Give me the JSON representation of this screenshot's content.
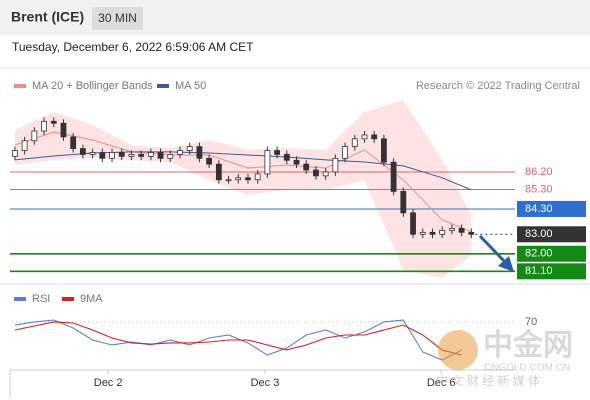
{
  "header": {
    "title": "Brent (ICE)",
    "interval": "30 MIN",
    "timestamp": "Tuesday, December 6, 2022 6:59:06 AM CET"
  },
  "watermark": {
    "name": "中金网",
    "site": "CNGOLD.COM.CN",
    "slogan": "中 文 财 经 新 媒 体"
  },
  "chart_data": [
    {
      "type": "candlestick",
      "source": "Research © 2022 Trading Central",
      "ylim": [
        80.5,
        90.15
      ],
      "xlim": [
        -0.3,
        51.5
      ],
      "candle_color": "#333333",
      "open": [
        87.0,
        87.3,
        87.8,
        88.3,
        88.8,
        88.7,
        88.0,
        87.4,
        87.1,
        87.2,
        86.9,
        87.2,
        87.0,
        87.1,
        87.0,
        87.2,
        86.9,
        87.1,
        87.3,
        87.5,
        86.9,
        86.6,
        85.8,
        85.8,
        85.9,
        85.8,
        86.1,
        87.3,
        87.1,
        86.8,
        86.6,
        86.3,
        86.0,
        86.2,
        86.9,
        87.5,
        87.9,
        88.1,
        87.9,
        86.7,
        85.2,
        84.1,
        83.0,
        83.1,
        83.0,
        83.2,
        83.3,
        83.1
      ],
      "high": [
        87.5,
        88.0,
        88.5,
        89.0,
        89.0,
        88.9,
        88.2,
        87.6,
        87.4,
        87.4,
        87.4,
        87.4,
        87.3,
        87.3,
        87.4,
        87.4,
        87.3,
        87.5,
        87.7,
        87.7,
        87.1,
        86.8,
        86.0,
        86.1,
        86.1,
        86.3,
        87.5,
        87.5,
        87.3,
        87.0,
        86.8,
        86.5,
        86.4,
        87.1,
        87.7,
        88.1,
        88.3,
        88.3,
        88.1,
        86.9,
        85.4,
        84.3,
        83.3,
        83.3,
        83.4,
        83.5,
        83.5,
        83.3
      ],
      "low": [
        86.8,
        87.1,
        87.6,
        88.1,
        88.5,
        87.8,
        87.2,
        86.9,
        86.9,
        86.7,
        86.7,
        86.8,
        86.8,
        86.8,
        86.8,
        86.7,
        86.7,
        86.9,
        87.1,
        86.7,
        86.4,
        85.6,
        85.6,
        85.6,
        85.6,
        85.6,
        85.9,
        86.9,
        86.6,
        86.4,
        86.1,
        85.8,
        85.8,
        86.0,
        86.7,
        87.3,
        87.7,
        87.7,
        86.5,
        85.0,
        83.9,
        82.8,
        82.8,
        82.8,
        82.8,
        83.0,
        82.9,
        82.8
      ],
      "close": [
        87.3,
        87.8,
        88.3,
        88.8,
        88.7,
        88.0,
        87.4,
        87.1,
        87.2,
        86.9,
        87.2,
        87.0,
        87.1,
        87.0,
        87.2,
        86.9,
        87.1,
        87.3,
        87.5,
        86.9,
        86.6,
        85.8,
        85.8,
        85.9,
        85.8,
        86.1,
        87.3,
        87.1,
        86.8,
        86.6,
        86.3,
        86.0,
        86.2,
        86.9,
        87.5,
        87.9,
        88.1,
        87.9,
        86.7,
        85.2,
        84.1,
        83.0,
        83.1,
        83.0,
        83.2,
        83.3,
        83.1,
        83.0
      ],
      "series": [
        {
          "name": "MA 20 + Bollinger Bands",
          "color": "#f08a8a",
          "band_color": "#fde3e3",
          "x": [
            0,
            4,
            8,
            12,
            16,
            20,
            24,
            28,
            32,
            36,
            40,
            44,
            47
          ],
          "values": [
            87.58,
            88.25,
            87.84,
            87.23,
            87.07,
            87.07,
            86.4,
            86.56,
            86.4,
            87.33,
            85.79,
            83.74,
            83.12
          ],
          "upper": [
            88.35,
            89.28,
            88.61,
            87.58,
            87.43,
            87.84,
            87.33,
            87.43,
            87.33,
            89.28,
            89.89,
            86.82,
            84.0
          ],
          "lower": [
            86.56,
            86.82,
            86.92,
            86.82,
            86.71,
            85.79,
            85.02,
            85.28,
            85.28,
            85.79,
            81.17,
            80.76,
            81.94
          ]
        },
        {
          "name": "MA 50",
          "color": "#3d5a99",
          "x": [
            0,
            4,
            8,
            12,
            16,
            20,
            24,
            28,
            32,
            36,
            40,
            44,
            47
          ],
          "values": [
            86.82,
            87.02,
            87.17,
            87.23,
            87.23,
            87.17,
            87.07,
            86.97,
            86.82,
            86.71,
            86.51,
            85.9,
            85.28
          ]
        }
      ],
      "levels": [
        {
          "value": 86.2,
          "label": "86.20",
          "color": "#e06666",
          "line": "solid",
          "box": false
        },
        {
          "value": 85.3,
          "label": "85.30",
          "color": "#e06666",
          "line": "solid",
          "box": false
        },
        {
          "value": 84.3,
          "label": "84.30",
          "color": "#2f6fd0",
          "line": "solid",
          "box": true
        },
        {
          "value": 83.0,
          "label": "83.00",
          "color": "#333333",
          "line": "dotted",
          "box": true
        },
        {
          "value": 82.0,
          "label": "82.00",
          "color": "#138a13",
          "line": "solid",
          "box": true
        },
        {
          "value": 81.1,
          "label": "81.10",
          "color": "#138a13",
          "line": "solid",
          "box": true
        }
      ]
    },
    {
      "type": "line",
      "ylim": [
        15,
        95
      ],
      "xlim": [
        -0.3,
        51.5
      ],
      "yticks": [
        70
      ],
      "xticks": [
        {
          "value": 9.6,
          "label": "Dec 2"
        },
        {
          "value": 25.75,
          "label": "Dec 3"
        },
        {
          "value": 43.9,
          "label": "Dec 6"
        }
      ],
      "series": [
        {
          "name": "RSI",
          "color": "#5b7fd6",
          "x": [
            0,
            2,
            4,
            6,
            8,
            10,
            12,
            14,
            16,
            18,
            20,
            22,
            24,
            26,
            28,
            30,
            32,
            34,
            36,
            38,
            40,
            42,
            44,
            46
          ],
          "values": [
            66.4,
            69.9,
            72.1,
            63.0,
            49.3,
            43.6,
            47.0,
            43.6,
            49.3,
            43.6,
            51.6,
            55.0,
            45.9,
            32.1,
            40.1,
            55.0,
            60.7,
            51.6,
            58.4,
            69.9,
            72.1,
            35.6,
            26.4,
            37.9
          ]
        },
        {
          "name": "9MA",
          "color": "#d62020",
          "x": [
            0,
            2,
            4,
            6,
            8,
            10,
            12,
            14,
            16,
            18,
            20,
            22,
            24,
            26,
            28,
            30,
            32,
            34,
            36,
            38,
            40,
            42,
            44,
            46
          ],
          "values": [
            60.7,
            65.3,
            69.9,
            68.7,
            60.7,
            51.6,
            45.9,
            44.7,
            45.9,
            45.9,
            47.0,
            49.3,
            49.3,
            43.6,
            37.9,
            43.6,
            51.6,
            55.0,
            55.0,
            60.7,
            66.4,
            55.0,
            37.9,
            32.1
          ]
        }
      ]
    }
  ]
}
